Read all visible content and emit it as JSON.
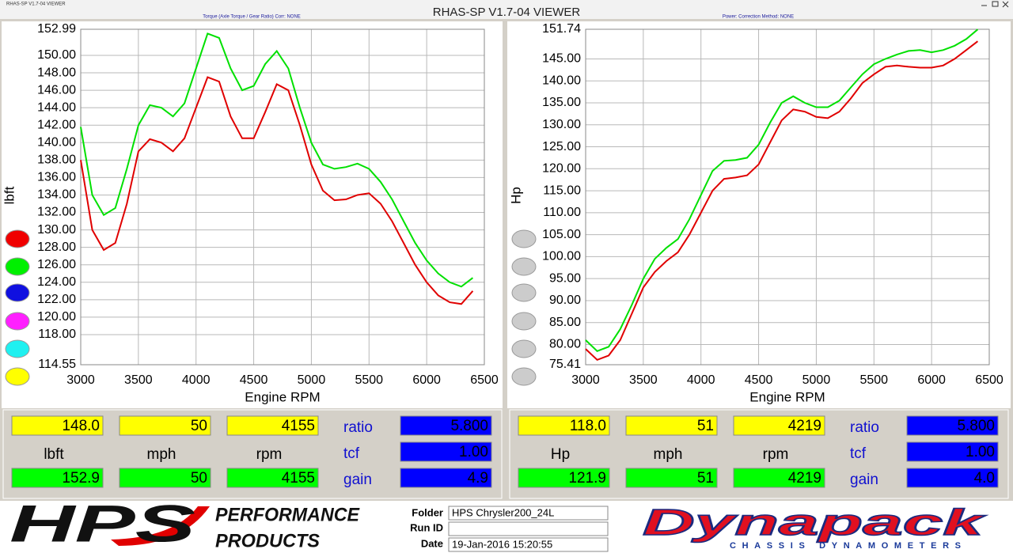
{
  "window": {
    "title": "RHAS-SP V1.7-04  VIEWER",
    "app_label": "RHAS-SP V1.7-04  VIEWER"
  },
  "chart_data": [
    {
      "type": "line",
      "subtitle": "Torque (Axle Torque / Gear Ratio)        Corr: NONE",
      "x_label": "Engine RPM",
      "y_label": "lbft",
      "x": [
        3000,
        3100,
        3200,
        3300,
        3400,
        3500,
        3600,
        3700,
        3800,
        3900,
        4000,
        4100,
        4200,
        4300,
        4400,
        4500,
        4600,
        4700,
        4800,
        4900,
        5000,
        5100,
        5200,
        5300,
        5400,
        5500,
        5600,
        5700,
        5800,
        5900,
        6000,
        6100,
        6200,
        6300,
        6400
      ],
      "xlim": [
        3000,
        6500
      ],
      "xticks": [
        3000,
        3500,
        4000,
        4500,
        5000,
        5500,
        6000,
        6500
      ],
      "ylim": [
        114.55,
        152.99
      ],
      "yticks": [
        152.99,
        {
          "value": 150,
          "label": "150.00"
        },
        {
          "value": 148,
          "label": "148.00"
        },
        {
          "value": 146,
          "label": "146.00"
        },
        {
          "value": 144,
          "label": "144.00"
        },
        {
          "value": 142,
          "label": "142.00"
        },
        {
          "value": 140,
          "label": "140.00"
        },
        {
          "value": 138,
          "label": "138.00"
        },
        {
          "value": 136,
          "label": "136.00"
        },
        {
          "value": 134,
          "label": "134.00"
        },
        {
          "value": 132,
          "label": "132.00"
        },
        {
          "value": 130,
          "label": "130.00"
        },
        {
          "value": 128,
          "label": "128.00"
        },
        {
          "value": 126,
          "label": "126.00"
        },
        {
          "value": 124,
          "label": "124.00"
        },
        {
          "value": 122,
          "label": "122.00"
        },
        {
          "value": 120,
          "label": "120.00"
        },
        {
          "value": 118,
          "label": "118.00"
        },
        114.55
      ],
      "grid": true,
      "series": [
        {
          "color": "#e00000",
          "values": [
            138,
            130,
            127.7,
            128.5,
            133,
            139,
            140.4,
            140,
            139,
            140.5,
            144,
            147.5,
            147,
            143,
            140.5,
            140.5,
            143.5,
            146.7,
            146,
            142,
            137.5,
            134.5,
            133.4,
            133.5,
            134,
            134.2,
            133,
            131,
            128.5,
            126,
            124,
            122.5,
            121.7,
            121.5,
            123
          ]
        },
        {
          "color": "#00e000",
          "values": [
            141.8,
            134,
            131.7,
            132.5,
            137,
            142,
            144.3,
            144,
            143,
            144.5,
            148.5,
            152.5,
            152,
            148.5,
            146,
            146.5,
            149,
            150.5,
            148.5,
            144,
            140,
            137.5,
            137,
            137.2,
            137.6,
            137,
            135.5,
            133.5,
            131,
            128.5,
            126.5,
            125,
            124,
            123.5,
            124.5
          ]
        }
      ]
    },
    {
      "type": "line",
      "subtitle": "Power:        Correction Method: NONE",
      "x_label": "Engine RPM",
      "y_label": "Hp",
      "x": [
        3000,
        3100,
        3200,
        3300,
        3400,
        3500,
        3600,
        3700,
        3800,
        3900,
        4000,
        4100,
        4200,
        4300,
        4400,
        4500,
        4600,
        4700,
        4800,
        4900,
        5000,
        5100,
        5200,
        5300,
        5400,
        5500,
        5600,
        5700,
        5800,
        5900,
        6000,
        6100,
        6200,
        6300,
        6400
      ],
      "xlim": [
        3000,
        6500
      ],
      "xticks": [
        3000,
        3500,
        4000,
        4500,
        5000,
        5500,
        6000,
        6500
      ],
      "ylim": [
        75.41,
        151.74
      ],
      "yticks": [
        151.74,
        {
          "value": 145,
          "label": "145.00"
        },
        {
          "value": 140,
          "label": "140.00"
        },
        {
          "value": 135,
          "label": "135.00"
        },
        {
          "value": 130,
          "label": "130.00"
        },
        {
          "value": 125,
          "label": "125.00"
        },
        {
          "value": 120,
          "label": "120.00"
        },
        {
          "value": 115,
          "label": "115.00"
        },
        {
          "value": 110,
          "label": "110.00"
        },
        {
          "value": 105,
          "label": "105.00"
        },
        {
          "value": 100,
          "label": "100.00"
        },
        {
          "value": 95,
          "label": "95.00"
        },
        {
          "value": 90,
          "label": "90.00"
        },
        {
          "value": 85,
          "label": "85.00"
        },
        {
          "value": 80,
          "label": "80.00"
        },
        75.41
      ],
      "grid": true,
      "series": [
        {
          "color": "#e00000",
          "values": [
            79,
            76.5,
            77.5,
            81,
            87,
            93,
            96.5,
            99,
            101,
            105,
            110,
            115,
            117.7,
            118,
            118.5,
            121,
            126,
            131,
            133.5,
            133,
            131.8,
            131.5,
            133,
            136,
            139.5,
            141.5,
            143.2,
            143.5,
            143.2,
            143,
            143,
            143.5,
            145,
            147,
            149
          ]
        },
        {
          "color": "#00e000",
          "values": [
            81,
            78.5,
            79.5,
            83.5,
            89,
            95,
            99.5,
            102,
            104,
            108.5,
            114,
            119.5,
            121.8,
            122,
            122.5,
            125.5,
            130.5,
            135,
            136.5,
            135,
            134,
            134,
            135.5,
            138.5,
            141.5,
            143.8,
            145,
            146,
            146.8,
            147,
            146.5,
            147,
            148,
            149.5,
            151.7
          ]
        }
      ]
    }
  ],
  "readouts": [
    {
      "row1": [
        "148.0",
        "50",
        "4155"
      ],
      "units": [
        "lbft",
        "mph",
        "rpm"
      ],
      "row3": [
        "152.9",
        "50",
        "4155"
      ],
      "labels": [
        "ratio",
        "tcf",
        "gain"
      ],
      "settings": [
        "5.800",
        "1.00",
        "4.9"
      ]
    },
    {
      "row1": [
        "118.0",
        "51",
        "4219"
      ],
      "units": [
        "Hp",
        "mph",
        "rpm"
      ],
      "row3": [
        "121.9",
        "51",
        "4219"
      ],
      "labels": [
        "ratio",
        "tcf",
        "gain"
      ],
      "settings": [
        "5.800",
        "1.00",
        "4.0"
      ]
    }
  ],
  "footer": {
    "logo": "HPS",
    "logo_line1": "PERFORMANCE",
    "logo_line2": "PRODUCTS",
    "folder_label": "Folder",
    "folder": "HPS Chrysler200_24L",
    "run_id_label": "Run ID",
    "date_label": "Date",
    "date": "19-Jan-2016  15:20:55",
    "brand": "Dynapack",
    "brand_sub": "CHASSIS DYNAMOMETERS"
  }
}
